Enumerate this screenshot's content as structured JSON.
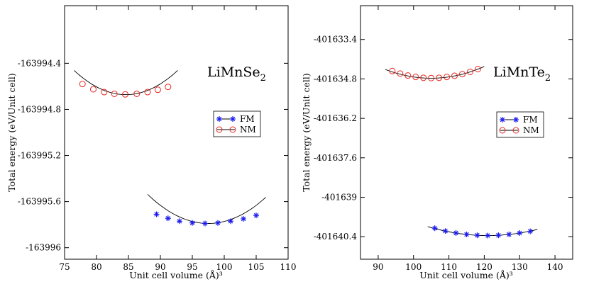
{
  "chart_data": [
    {
      "type": "scatter",
      "title": "LiMnSe",
      "title_subscript": "2",
      "xlabel": "Unit cell volume (Å)³",
      "ylabel": "Total energy (eV/Unit cell)",
      "xlim": [
        75,
        110
      ],
      "ylim": [
        -163996.1,
        -163993.9
      ],
      "xticks": [
        75,
        80,
        85,
        90,
        95,
        100,
        105,
        110
      ],
      "yticks": [
        -163994.4,
        -163994.8,
        -163995.2,
        -163995.6,
        -163996
      ],
      "ytick_labels": [
        "-163994.4",
        "-163994.8",
        "-163995.2",
        "-163995.6",
        "-163996"
      ],
      "legend": {
        "position": "center-right",
        "entries": [
          "FM",
          "NM"
        ]
      },
      "series": [
        {
          "name": "FM",
          "marker": "star",
          "color": "#1a1aee",
          "x": [
            89.4,
            91.2,
            93.0,
            95.0,
            97.0,
            99.0,
            101.0,
            103.0,
            105.0
          ],
          "y": [
            -163995.71,
            -163995.745,
            -163995.77,
            -163995.785,
            -163995.79,
            -163995.785,
            -163995.77,
            -163995.75,
            -163995.72
          ],
          "fit_x": [
            88.0,
            106.5
          ],
          "fit": {
            "a": 0.0028,
            "x0": 97.5,
            "c": -163995.79
          }
        },
        {
          "name": "NM",
          "marker": "circle",
          "color": "#e8231d",
          "x": [
            77.8,
            79.5,
            81.2,
            82.8,
            84.5,
            86.3,
            88.0,
            89.6,
            91.2
          ],
          "y": [
            -163994.58,
            -163994.625,
            -163994.65,
            -163994.665,
            -163994.67,
            -163994.665,
            -163994.65,
            -163994.63,
            -163994.605
          ],
          "fit_x": [
            76.5,
            92.7
          ],
          "fit": {
            "a": 0.0032,
            "x0": 84.6,
            "c": -163994.672
          }
        }
      ]
    },
    {
      "type": "scatter",
      "title": "LiMnTe",
      "title_subscript": "2",
      "xlabel": "Unit cell volume (Å)³",
      "ylabel": "Total energy (eV/Unit cell)",
      "xlim": [
        85,
        145
      ],
      "ylim": [
        -401641.2,
        -401632.2
      ],
      "xticks": [
        90,
        100,
        110,
        120,
        130,
        140
      ],
      "yticks": [
        -401633.4,
        -401634.8,
        -401636.2,
        -401637.6,
        -401639,
        -401640.4
      ],
      "ytick_labels": [
        "-401633.4",
        "-401634.8",
        "-401636.2",
        "-401637.6",
        "-401639",
        "-401640.4"
      ],
      "legend": {
        "position": "center-right",
        "entries": [
          "FM",
          "NM"
        ]
      },
      "series": [
        {
          "name": "FM",
          "marker": "star",
          "color": "#1a1aee",
          "x": [
            106.0,
            109.0,
            112.0,
            115.0,
            118.0,
            121.0,
            124.0,
            127.0,
            130.0,
            133.0
          ],
          "y": [
            -401640.1,
            -401640.2,
            -401640.27,
            -401640.32,
            -401640.35,
            -401640.36,
            -401640.35,
            -401640.32,
            -401640.27,
            -401640.21
          ],
          "fit_x": [
            104.0,
            135.0
          ],
          "fit": {
            "a": 0.0011,
            "x0": 121.0,
            "c": -401640.36
          }
        },
        {
          "name": "NM",
          "marker": "circle",
          "color": "#e8231d",
          "x": [
            94.0,
            96.2,
            98.4,
            100.6,
            102.8,
            105.0,
            107.2,
            109.4,
            111.6,
            113.8,
            116.0,
            118.2
          ],
          "y": [
            -401634.52,
            -401634.61,
            -401634.68,
            -401634.73,
            -401634.76,
            -401634.77,
            -401634.76,
            -401634.73,
            -401634.69,
            -401634.63,
            -401634.55,
            -401634.45
          ],
          "fit_x": [
            92.0,
            120.0
          ],
          "fit": {
            "a": 0.00185,
            "x0": 105.0,
            "c": -401634.775
          }
        }
      ]
    }
  ]
}
